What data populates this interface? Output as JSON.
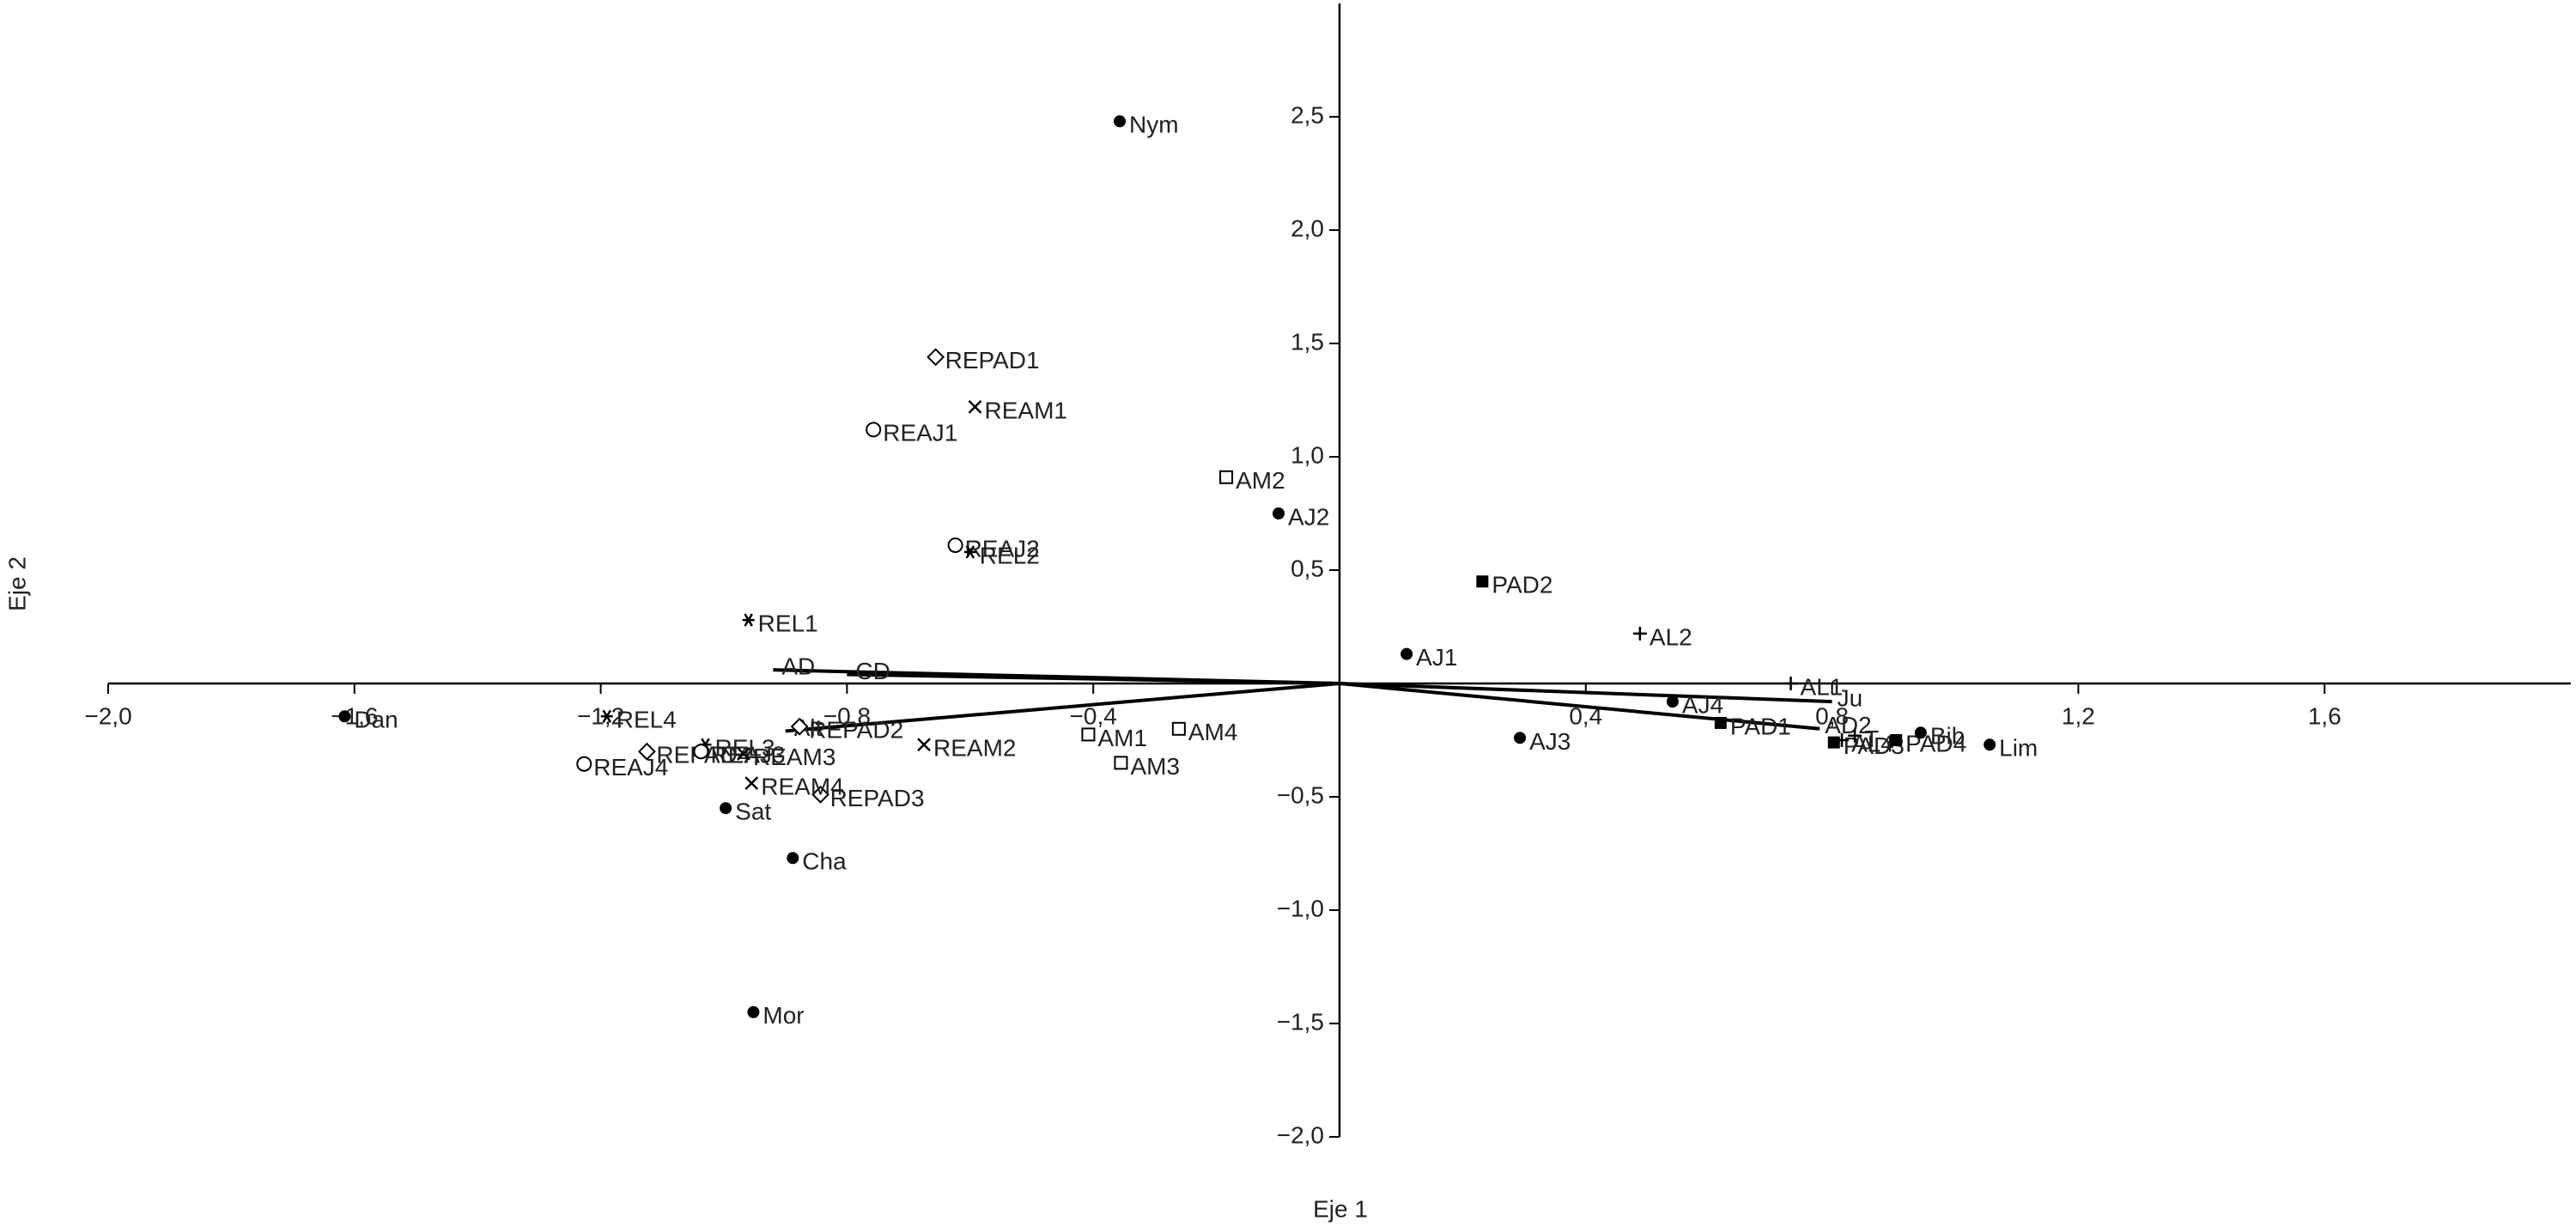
{
  "chart_data": {
    "type": "biplot",
    "xlabel": "Eje 1",
    "ylabel": "Eje 2",
    "xlim": [
      -2.0,
      2.0
    ],
    "ylim": [
      -2.0,
      3.0
    ],
    "xticks": [
      {
        "value": -2.0,
        "label": "−2,0"
      },
      {
        "value": -1.6,
        "label": "−1,6"
      },
      {
        "value": -1.2,
        "label": "−1,2"
      },
      {
        "value": -0.8,
        "label": "−0,8"
      },
      {
        "value": -0.4,
        "label": "−0,4"
      },
      {
        "value": 0.4,
        "label": "0,4"
      },
      {
        "value": 0.8,
        "label": "0,8"
      },
      {
        "value": 1.2,
        "label": "1,2"
      },
      {
        "value": 1.6,
        "label": "1,6"
      }
    ],
    "yticks": [
      {
        "value": -2.0,
        "label": "−2,0"
      },
      {
        "value": -1.5,
        "label": "−1,5"
      },
      {
        "value": -1.0,
        "label": "−1,0"
      },
      {
        "value": -0.5,
        "label": "−0,5"
      },
      {
        "value": 0.5,
        "label": "0,5"
      },
      {
        "value": 1.0,
        "label": "1,0"
      },
      {
        "value": 1.5,
        "label": "1,5"
      },
      {
        "value": 2.0,
        "label": "2,0"
      },
      {
        "value": 2.5,
        "label": "2,5"
      }
    ],
    "color": "#000000",
    "vectors": [
      {
        "label": "AD",
        "x": -0.92,
        "y": 0.06
      },
      {
        "label": "CD",
        "x": -0.8,
        "y": 0.04
      },
      {
        "label": "Alt",
        "x": -0.9,
        "y": -0.21
      },
      {
        "label": "Ju",
        "x": 0.8,
        "y": -0.08
      },
      {
        "label": "AD2",
        "x": 0.78,
        "y": -0.2
      }
    ],
    "points": [
      {
        "label": "Nym",
        "x": -0.357,
        "y": 2.48,
        "marker": "dot"
      },
      {
        "label": "REPAD1",
        "x": -0.656,
        "y": 1.44,
        "marker": "diamond"
      },
      {
        "label": "REAM1",
        "x": -0.592,
        "y": 1.22,
        "marker": "x"
      },
      {
        "label": "REAJ1",
        "x": -0.757,
        "y": 1.12,
        "marker": "circle"
      },
      {
        "label": "AM2",
        "x": -0.184,
        "y": 0.91,
        "marker": "square"
      },
      {
        "label": "AJ2",
        "x": -0.099,
        "y": 0.75,
        "marker": "dot"
      },
      {
        "label": "REAJ2",
        "x": -0.624,
        "y": 0.61,
        "marker": "circle"
      },
      {
        "label": "REL2",
        "x": -0.6,
        "y": 0.58,
        "marker": "star"
      },
      {
        "label": "PAD2",
        "x": 0.232,
        "y": 0.45,
        "marker": "filled-square"
      },
      {
        "label": "AL2",
        "x": 0.488,
        "y": 0.22,
        "marker": "plus"
      },
      {
        "label": "REL1",
        "x": -0.96,
        "y": 0.28,
        "marker": "star"
      },
      {
        "label": "AJ1",
        "x": 0.109,
        "y": 0.13,
        "marker": "dot"
      },
      {
        "label": "AL1",
        "x": 0.733,
        "y": 0.0,
        "marker": "plus"
      },
      {
        "label": "Dan",
        "x": -1.616,
        "y": -0.145,
        "marker": "dot"
      },
      {
        "label": "REL4",
        "x": -1.19,
        "y": -0.145,
        "marker": "star"
      },
      {
        "label": "REPAD2",
        "x": -0.877,
        "y": -0.19,
        "marker": "diamond"
      },
      {
        "label": "REL3",
        "x": -1.03,
        "y": -0.27,
        "marker": "star"
      },
      {
        "label": "REPAD4",
        "x": -1.125,
        "y": -0.3,
        "marker": "diamond"
      },
      {
        "label": "REAJ3",
        "x": -1.037,
        "y": -0.3,
        "marker": "circle"
      },
      {
        "label": "REAM3",
        "x": -0.968,
        "y": -0.31,
        "marker": "x"
      },
      {
        "label": "REAM2",
        "x": -0.675,
        "y": -0.27,
        "marker": "x"
      },
      {
        "label": "REPAD3",
        "x": -0.843,
        "y": -0.49,
        "marker": "diamond"
      },
      {
        "label": "REAJ4",
        "x": -1.227,
        "y": -0.355,
        "marker": "circle"
      },
      {
        "label": "REAM4",
        "x": -0.955,
        "y": -0.44,
        "marker": "x"
      },
      {
        "label": "Sat",
        "x": -0.997,
        "y": -0.55,
        "marker": "dot"
      },
      {
        "label": "Cha",
        "x": -0.888,
        "y": -0.77,
        "marker": "dot"
      },
      {
        "label": "Mor",
        "x": -0.952,
        "y": -1.45,
        "marker": "dot"
      },
      {
        "label": "AM1",
        "x": -0.408,
        "y": -0.225,
        "marker": "square"
      },
      {
        "label": "AM4",
        "x": -0.261,
        "y": -0.2,
        "marker": "square"
      },
      {
        "label": "AM3",
        "x": -0.355,
        "y": -0.35,
        "marker": "square"
      },
      {
        "label": "AJ3",
        "x": 0.293,
        "y": -0.24,
        "marker": "dot"
      },
      {
        "label": "AJ4",
        "x": 0.541,
        "y": -0.08,
        "marker": "dot"
      },
      {
        "label": "PAD1",
        "x": 0.619,
        "y": -0.174,
        "marker": "filled-square"
      },
      {
        "label": "PAD3",
        "x": 0.803,
        "y": -0.26,
        "marker": "filled-square"
      },
      {
        "label": "T",
        "x": 0.837,
        "y": -0.23,
        "marker": "plus"
      },
      {
        "label": "AL4",
        "x": 0.816,
        "y": -0.25,
        "marker": "plus"
      },
      {
        "label": "PAD4",
        "x": 0.904,
        "y": -0.25,
        "marker": "filled-square"
      },
      {
        "label": "Bib",
        "x": 0.944,
        "y": -0.217,
        "marker": "dot"
      },
      {
        "label": "Lim",
        "x": 1.056,
        "y": -0.27,
        "marker": "dot"
      }
    ]
  }
}
